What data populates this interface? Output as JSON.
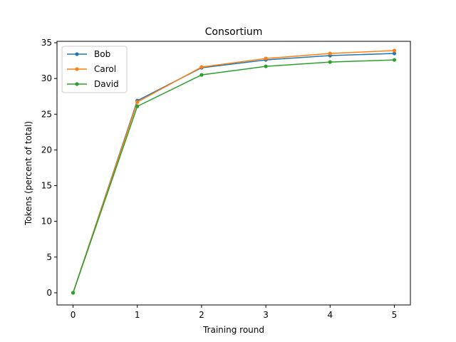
{
  "chart_data": {
    "type": "line",
    "title": "Consortium",
    "xlabel": "Training round",
    "ylabel": "Tokens (percent of total)",
    "x": [
      0,
      1,
      2,
      3,
      4,
      5
    ],
    "xlim": [
      -0.25,
      5.25
    ],
    "ylim": [
      -1.7,
      35.2
    ],
    "xticks": [
      0,
      1,
      2,
      3,
      4,
      5
    ],
    "yticks": [
      0,
      5,
      10,
      15,
      20,
      25,
      30,
      35
    ],
    "grid": false,
    "legend_position": "top-left",
    "series": [
      {
        "name": "Bob",
        "color": "#1f77b4",
        "values": [
          0,
          26.9,
          31.5,
          32.6,
          33.2,
          33.5
        ]
      },
      {
        "name": "Carol",
        "color": "#ff7f0e",
        "values": [
          0,
          26.7,
          31.6,
          32.8,
          33.5,
          33.9
        ]
      },
      {
        "name": "David",
        "color": "#2ca02c",
        "values": [
          0,
          26.1,
          30.5,
          31.7,
          32.3,
          32.6
        ]
      }
    ]
  }
}
